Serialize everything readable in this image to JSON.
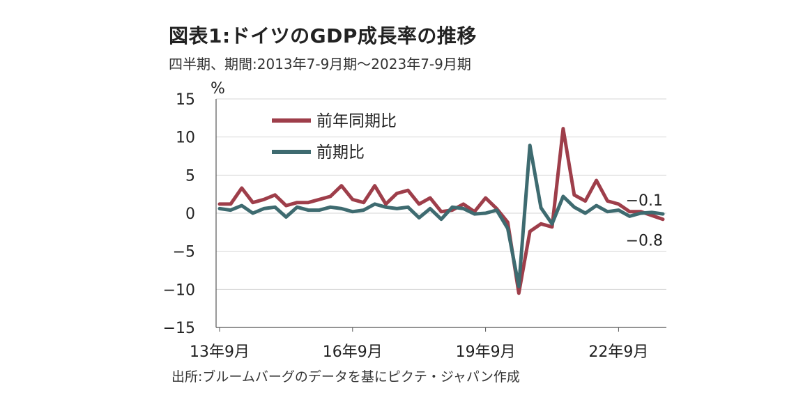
{
  "title": "図表1:ドイツのGDP成長率の推移",
  "subtitle": "四半期、期間:2013年7-9月期～2023年7-9月期",
  "source": "出所:ブルームバーグのデータを基にピクテ・ジャパン作成",
  "chart_data": {
    "type": "line",
    "ylabel": "%",
    "ylim": [
      -15,
      15
    ],
    "yticks": [
      15,
      10,
      5,
      0,
      -5,
      -10,
      -15
    ],
    "ytick_labels": [
      "15",
      "10",
      "5",
      "0",
      "−5",
      "−10",
      "−15"
    ],
    "x_tick_labels": [
      {
        "label": "13年9月",
        "index": 0
      },
      {
        "label": "16年9月",
        "index": 12
      },
      {
        "label": "19年9月",
        "index": 24
      },
      {
        "label": "22年9月",
        "index": 36
      }
    ],
    "categories": [
      "13Q3",
      "13Q4",
      "14Q1",
      "14Q2",
      "14Q3",
      "14Q4",
      "15Q1",
      "15Q2",
      "15Q3",
      "15Q4",
      "16Q1",
      "16Q2",
      "16Q3",
      "16Q4",
      "17Q1",
      "17Q2",
      "17Q3",
      "17Q4",
      "18Q1",
      "18Q2",
      "18Q3",
      "18Q4",
      "19Q1",
      "19Q2",
      "19Q3",
      "19Q4",
      "20Q1",
      "20Q2",
      "20Q3",
      "20Q4",
      "21Q1",
      "21Q2",
      "21Q3",
      "21Q4",
      "22Q1",
      "22Q2",
      "22Q3",
      "22Q4",
      "23Q1",
      "23Q2",
      "23Q3"
    ],
    "series": [
      {
        "name": "前年同期比",
        "color": "#9e3e4a",
        "values": [
          1.2,
          1.2,
          3.3,
          1.4,
          1.8,
          2.4,
          1.0,
          1.4,
          1.4,
          1.8,
          2.2,
          3.6,
          1.8,
          1.4,
          3.6,
          1.2,
          2.6,
          3.0,
          1.2,
          2.0,
          0.2,
          0.4,
          1.2,
          0.2,
          2.0,
          0.6,
          -1.2,
          -10.5,
          -2.4,
          -1.4,
          -1.8,
          11.1,
          2.4,
          1.6,
          4.3,
          1.6,
          1.2,
          0.2,
          0.2,
          -0.3,
          -0.8
        ]
      },
      {
        "name": "前期比",
        "color": "#3e6b70",
        "values": [
          0.6,
          0.4,
          1.0,
          0.0,
          0.6,
          0.8,
          -0.5,
          0.8,
          0.4,
          0.4,
          0.8,
          0.6,
          0.2,
          0.4,
          1.2,
          0.8,
          0.6,
          0.8,
          -0.6,
          0.6,
          -0.8,
          0.8,
          0.6,
          -0.1,
          0.0,
          0.4,
          -2.0,
          -9.6,
          8.9,
          0.7,
          -1.4,
          2.2,
          0.8,
          0.0,
          1.0,
          0.2,
          0.4,
          -0.4,
          0.0,
          0.1,
          -0.1
        ]
      }
    ],
    "annotations": [
      {
        "text": "−0.1",
        "series": 1,
        "index": 40
      },
      {
        "text": "−0.8",
        "series": 0,
        "index": 40
      }
    ],
    "legend": "top-left",
    "grid": true
  }
}
